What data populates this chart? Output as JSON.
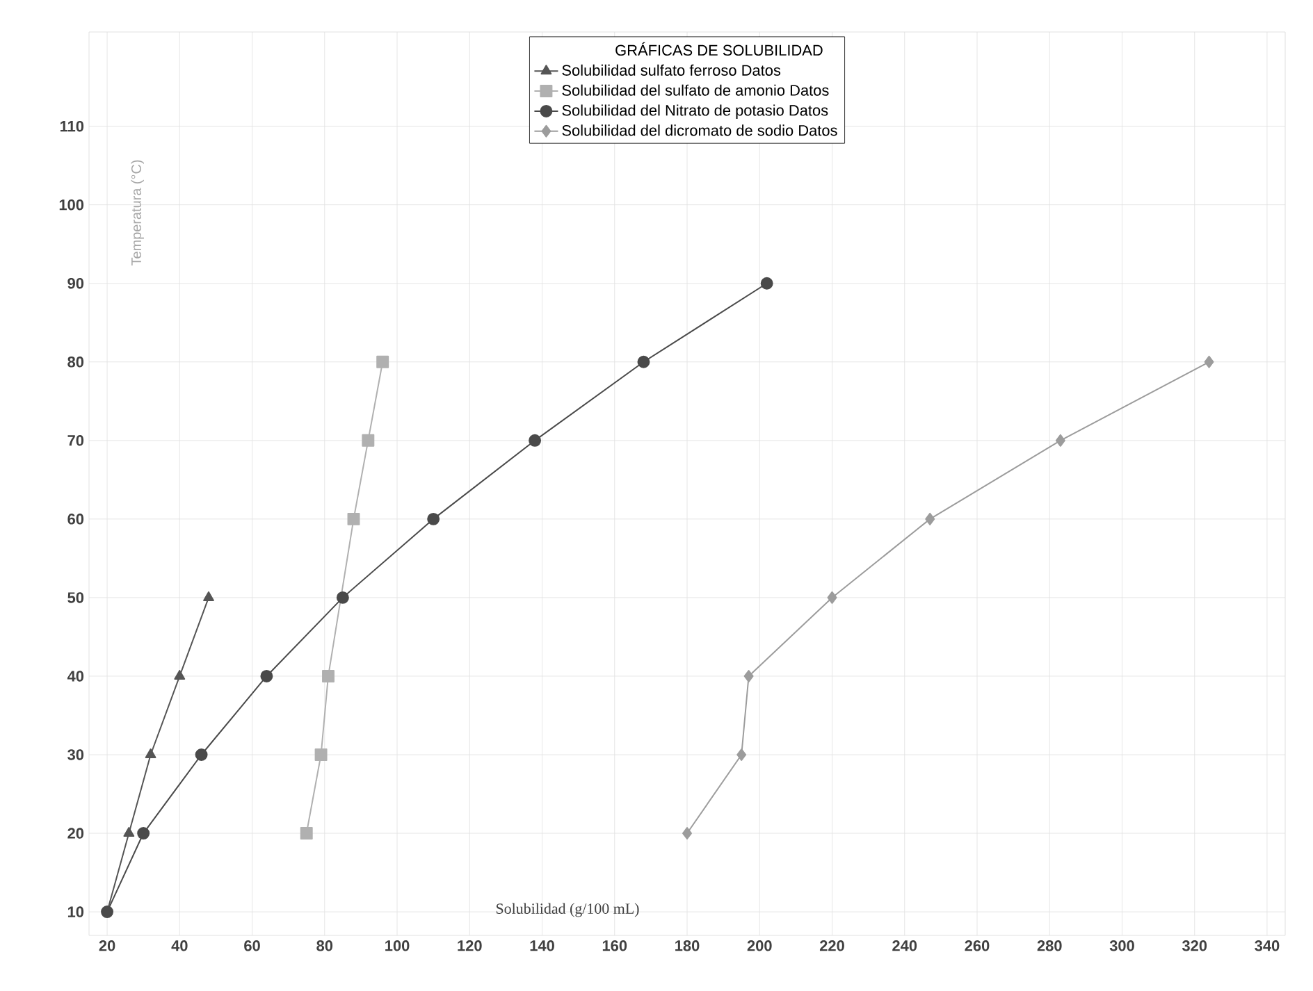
{
  "chart_data": {
    "type": "line",
    "legend_title": "GRÁFICAS DE SOLUBILIDAD",
    "xlabel": "Solubilidad (g/100 mL)",
    "ylabel": "Temperatura (°C)",
    "xlim": [
      15,
      345
    ],
    "ylim": [
      7,
      122
    ],
    "xticks": [
      20,
      40,
      60,
      80,
      100,
      120,
      140,
      160,
      180,
      200,
      220,
      240,
      260,
      280,
      300,
      320,
      340
    ],
    "yticks": [
      10,
      20,
      30,
      40,
      50,
      60,
      70,
      80,
      90,
      100,
      110
    ],
    "grid": true,
    "legend": "top",
    "series": [
      {
        "name": "Solubilidad sulfato ferroso Datos",
        "color": "#555555",
        "marker": "triangle",
        "x": [
          20,
          26,
          32,
          40,
          48
        ],
        "values": [
          10,
          20,
          30,
          40,
          50
        ]
      },
      {
        "name": "Solubilidad del sulfato de amonio Datos",
        "color": "#b0b0b0",
        "marker": "square",
        "x": [
          75,
          79,
          81,
          88,
          92,
          96
        ],
        "values": [
          20,
          30,
          40,
          60,
          70,
          80
        ]
      },
      {
        "name": "Solubilidad del Nitrato de potasio Datos",
        "color": "#4a4a4a",
        "marker": "circle",
        "x": [
          20,
          30,
          46,
          64,
          85,
          110,
          138,
          168,
          202
        ],
        "values": [
          10,
          20,
          30,
          40,
          50,
          60,
          70,
          80,
          90
        ]
      },
      {
        "name": "Solubilidad del dicromato de sodio Datos",
        "color": "#9c9c9c",
        "marker": "diamond",
        "x": [
          180,
          195,
          197,
          220,
          247,
          283,
          324
        ],
        "values": [
          20,
          30,
          40,
          50,
          60,
          70,
          80
        ]
      }
    ]
  }
}
